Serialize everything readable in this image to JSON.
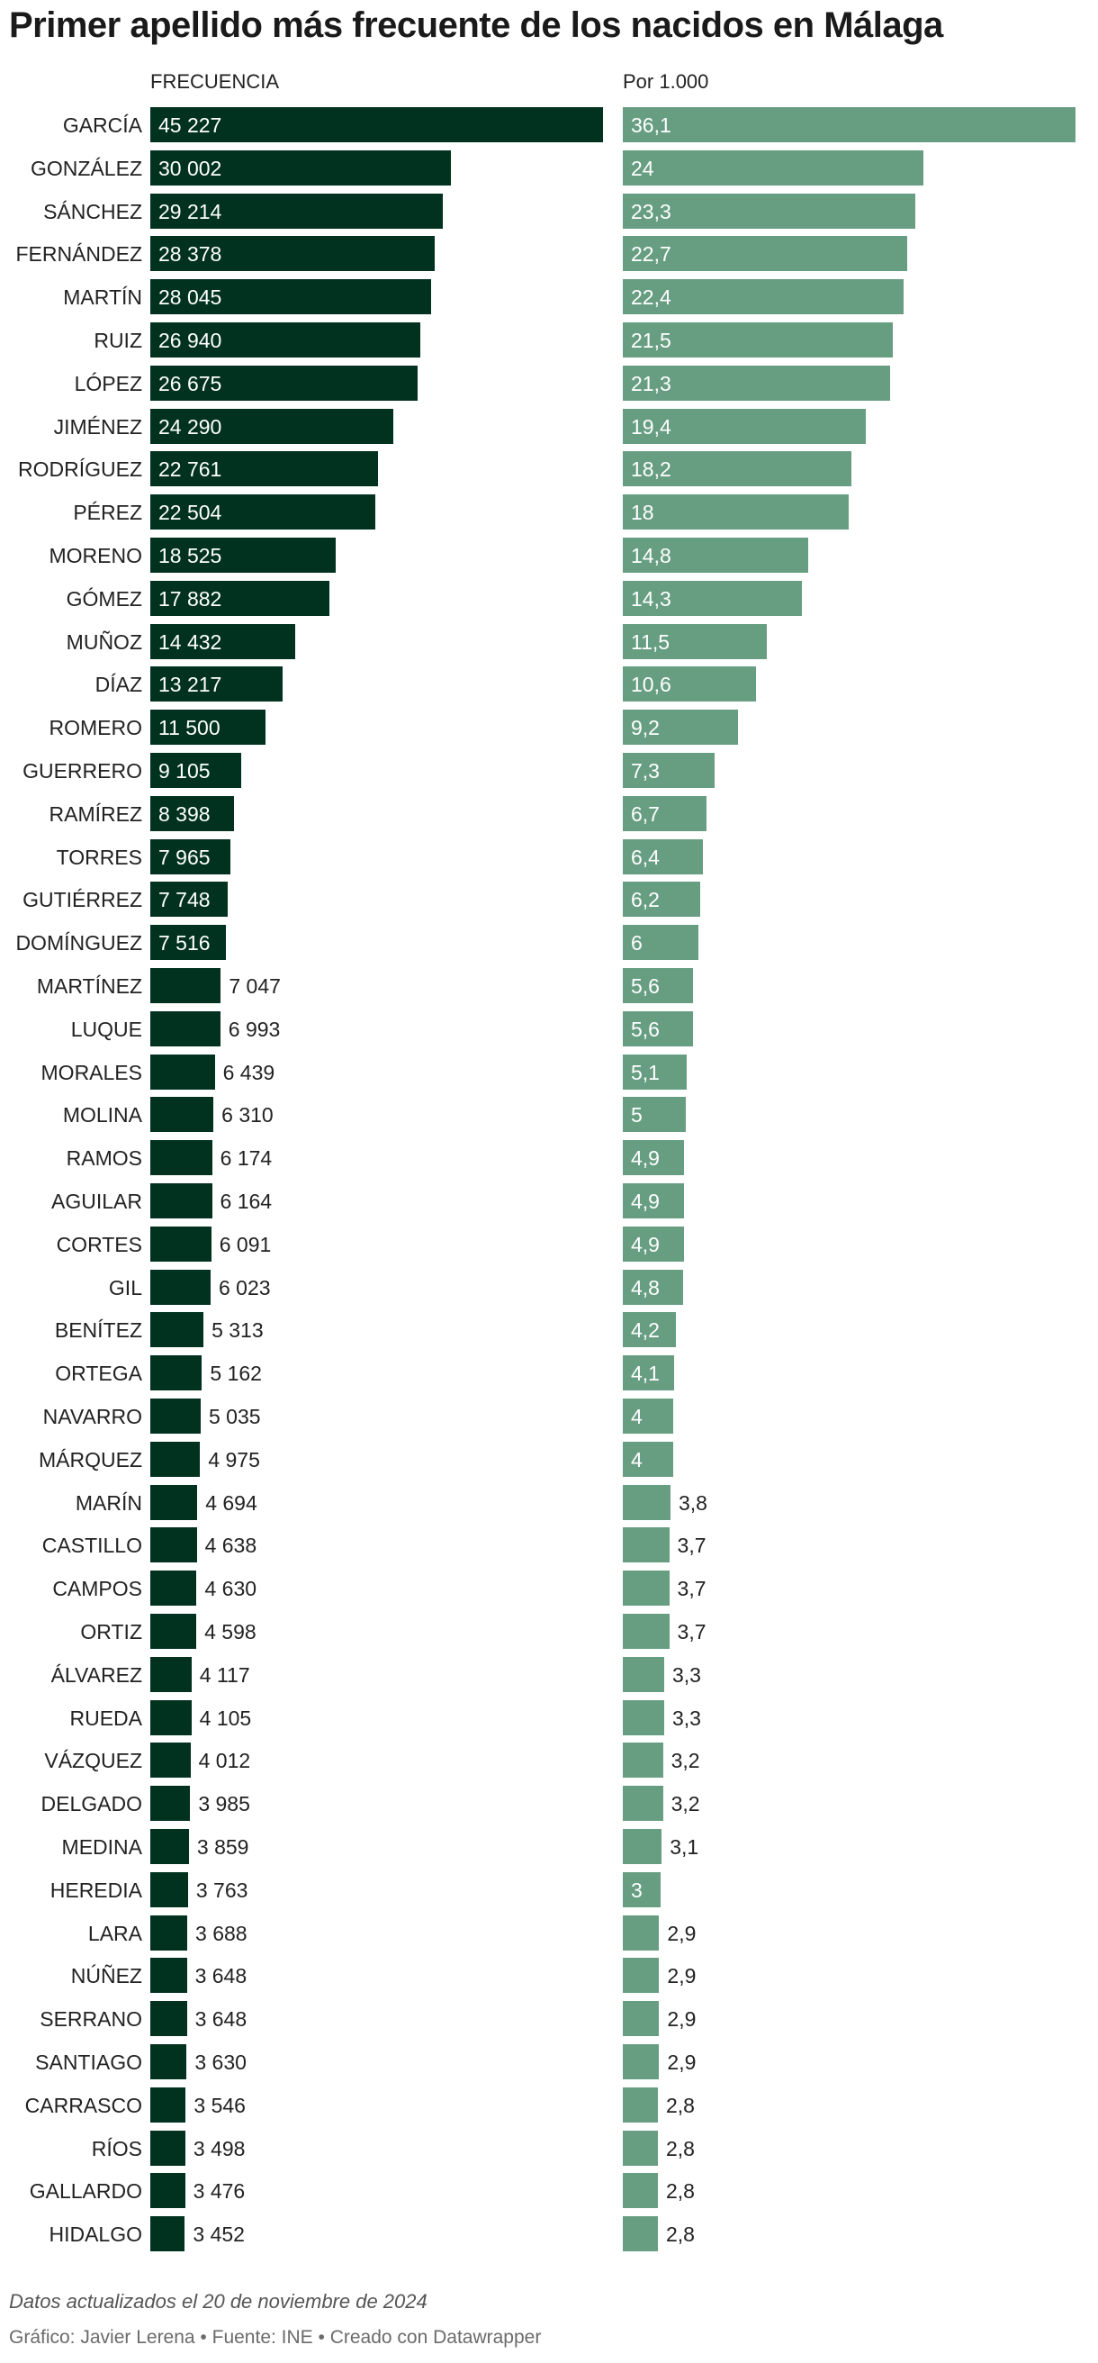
{
  "chart_data": {
    "type": "bar",
    "title": "Primer apellido más frecuente de los nacidos en Málaga",
    "series": [
      {
        "name": "FRECUENCIA",
        "color": "#013220",
        "xlim": [
          0,
          45227
        ],
        "labels": [
          "45 227",
          "30 002",
          "29 214",
          "28 378",
          "28 045",
          "26 940",
          "26 675",
          "24 290",
          "22 761",
          "22 504",
          "18 525",
          "17 882",
          "14 432",
          "13 217",
          "11 500",
          "9 105",
          "8 398",
          "7 965",
          "7 748",
          "7 516",
          "7 047",
          "6 993",
          "6 439",
          "6 310",
          "6 174",
          "6 164",
          "6 091",
          "6 023",
          "5 313",
          "5 162",
          "5 035",
          "4 975",
          "4 694",
          "4 638",
          "4 630",
          "4 598",
          "4 117",
          "4 105",
          "4 012",
          "3 985",
          "3 859",
          "3 763",
          "3 688",
          "3 648",
          "3 648",
          "3 630",
          "3 546",
          "3 498",
          "3 476",
          "3 452"
        ],
        "values": [
          45227,
          30002,
          29214,
          28378,
          28045,
          26940,
          26675,
          24290,
          22761,
          22504,
          18525,
          17882,
          14432,
          13217,
          11500,
          9105,
          8398,
          7965,
          7748,
          7516,
          7047,
          6993,
          6439,
          6310,
          6174,
          6164,
          6091,
          6023,
          5313,
          5162,
          5035,
          4975,
          4694,
          4638,
          4630,
          4598,
          4117,
          4105,
          4012,
          3985,
          3859,
          3763,
          3688,
          3648,
          3648,
          3630,
          3546,
          3498,
          3476,
          3452
        ]
      },
      {
        "name": "Por 1.000",
        "color": "#679e82",
        "xlim": [
          0,
          36.1
        ],
        "labels": [
          "36,1",
          "24",
          "23,3",
          "22,7",
          "22,4",
          "21,5",
          "21,3",
          "19,4",
          "18,2",
          "18",
          "14,8",
          "14,3",
          "11,5",
          "10,6",
          "9,2",
          "7,3",
          "6,7",
          "6,4",
          "6,2",
          "6",
          "5,6",
          "5,6",
          "5,1",
          "5",
          "4,9",
          "4,9",
          "4,9",
          "4,8",
          "4,2",
          "4,1",
          "4",
          "4",
          "3,8",
          "3,7",
          "3,7",
          "3,7",
          "3,3",
          "3,3",
          "3,2",
          "3,2",
          "3,1",
          "3",
          "2,9",
          "2,9",
          "2,9",
          "2,9",
          "2,8",
          "2,8",
          "2,8",
          "2,8"
        ],
        "values": [
          36.1,
          24,
          23.3,
          22.7,
          22.4,
          21.5,
          21.3,
          19.4,
          18.2,
          18,
          14.8,
          14.3,
          11.5,
          10.6,
          9.2,
          7.3,
          6.7,
          6.4,
          6.2,
          6,
          5.6,
          5.6,
          5.1,
          5,
          4.9,
          4.9,
          4.9,
          4.8,
          4.2,
          4.1,
          4,
          4,
          3.8,
          3.7,
          3.7,
          3.7,
          3.3,
          3.3,
          3.2,
          3.2,
          3.1,
          3,
          2.9,
          2.9,
          2.9,
          2.9,
          2.8,
          2.8,
          2.8,
          2.8
        ]
      }
    ],
    "categories": [
      "GARCÍA",
      "GONZÁLEZ",
      "SÁNCHEZ",
      "FERNÁNDEZ",
      "MARTÍN",
      "RUIZ",
      "LÓPEZ",
      "JIMÉNEZ",
      "RODRÍGUEZ",
      "PÉREZ",
      "MORENO",
      "GÓMEZ",
      "MUÑOZ",
      "DÍAZ",
      "ROMERO",
      "GUERRERO",
      "RAMÍREZ",
      "TORRES",
      "GUTIÉRREZ",
      "DOMÍNGUEZ",
      "MARTÍNEZ",
      "LUQUE",
      "MORALES",
      "MOLINA",
      "RAMOS",
      "AGUILAR",
      "CORTES",
      "GIL",
      "BENÍTEZ",
      "ORTEGA",
      "NAVARRO",
      "MÁRQUEZ",
      "MARÍN",
      "CASTILLO",
      "CAMPOS",
      "ORTIZ",
      "ÁLVAREZ",
      "RUEDA",
      "VÁZQUEZ",
      "DELGADO",
      "MEDINA",
      "HEREDIA",
      "LARA",
      "NÚÑEZ",
      "SERRANO",
      "SANTIAGO",
      "CARRASCO",
      "RÍOS",
      "GALLARDO",
      "HIDALGO"
    ],
    "note": "Datos actualizados el 20 de noviembre de 2024",
    "credits": "Gráfico: Javier Lerena • Fuente: INE • Creado con Datawrapper"
  }
}
